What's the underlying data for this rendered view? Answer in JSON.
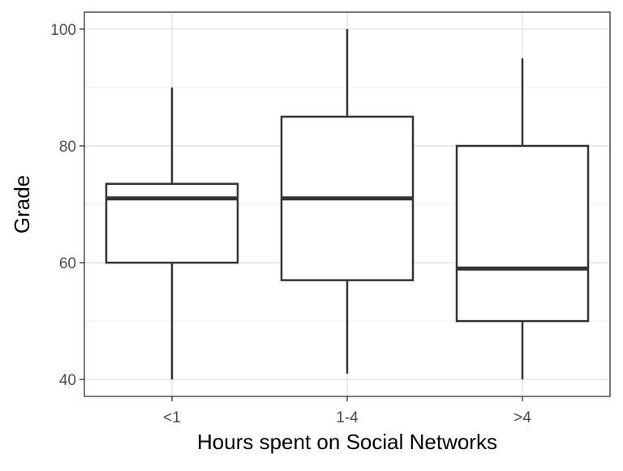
{
  "chart_data": {
    "type": "box",
    "title": "",
    "xlabel": "Hours spent on Social Networks",
    "ylabel": "Grade",
    "categories": [
      "<1",
      "1-4",
      ">4"
    ],
    "boxes": [
      {
        "category": "<1",
        "min": 40,
        "q1": 60,
        "median": 71,
        "q3": 73.5,
        "max": 90
      },
      {
        "category": "1-4",
        "min": 41,
        "q1": 57,
        "median": 71,
        "q3": 85,
        "max": 100
      },
      {
        "category": ">4",
        "min": 40,
        "q1": 50,
        "median": 59,
        "q3": 80,
        "max": 95
      }
    ],
    "yticks": [
      40,
      60,
      80,
      100
    ],
    "ylim": [
      37.1,
      102.9
    ],
    "grid": true,
    "colors": {
      "box_line": "#333333",
      "box_fill": "#ffffff",
      "grid": "#ebebeb",
      "panel_border": "#333333"
    }
  }
}
